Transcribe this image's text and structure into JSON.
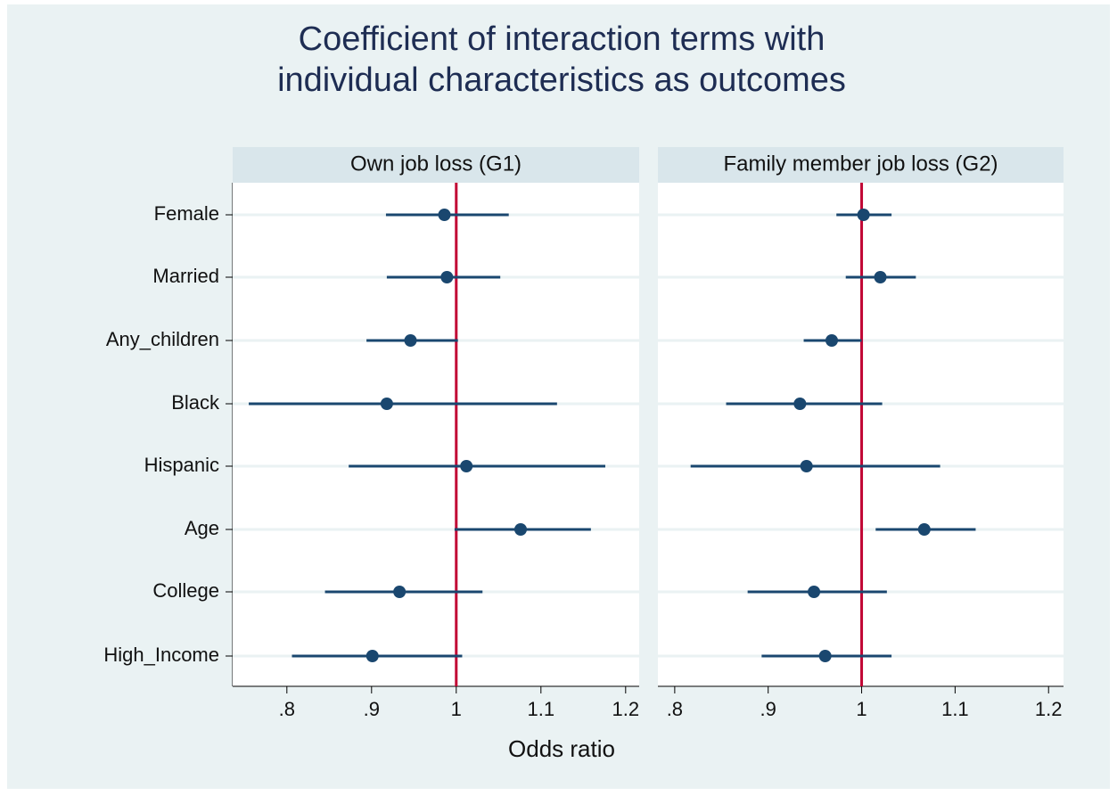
{
  "chart_data": {
    "type": "coefplot",
    "title": [
      "Coefficient of interaction terms with",
      "individual characteristics as outcomes"
    ],
    "xlabel": "Odds ratio",
    "categories": [
      "Female",
      "Married",
      "Any_children",
      "Black",
      "Hispanic",
      "Age",
      "College",
      "High_Income"
    ],
    "marker_color": "#1a476f",
    "refline": 1,
    "refline_color": "#c10534",
    "panels": [
      {
        "title": "Own job loss (G1)",
        "values": [
          0.986,
          0.989,
          0.946,
          0.918,
          1.012,
          1.076,
          0.933,
          0.901
        ],
        "lower": [
          0.917,
          0.918,
          0.894,
          0.755,
          0.873,
          0.998,
          0.845,
          0.806
        ],
        "upper": [
          1.062,
          1.052,
          1.002,
          1.119,
          1.176,
          1.159,
          1.031,
          1.007
        ],
        "xlim": [
          0.736,
          1.216
        ],
        "xticks": [
          {
            "value": 0.8,
            "label": ".8"
          },
          {
            "value": 0.9,
            "label": ".9"
          },
          1,
          1.1,
          1.2
        ]
      },
      {
        "title": "Family member job loss (G2)",
        "values": [
          1.002,
          1.02,
          0.968,
          0.934,
          0.941,
          1.067,
          0.949,
          0.961
        ],
        "lower": [
          0.973,
          0.983,
          0.938,
          0.855,
          0.817,
          1.015,
          0.878,
          0.893
        ],
        "upper": [
          1.032,
          1.058,
          1.0,
          1.022,
          1.084,
          1.122,
          1.027,
          1.032
        ],
        "xlim": [
          0.782,
          1.216
        ],
        "xticks": [
          {
            "value": 0.8,
            "label": ".8"
          },
          {
            "value": 0.9,
            "label": ".9"
          },
          1,
          1.1,
          1.2
        ]
      }
    ]
  }
}
